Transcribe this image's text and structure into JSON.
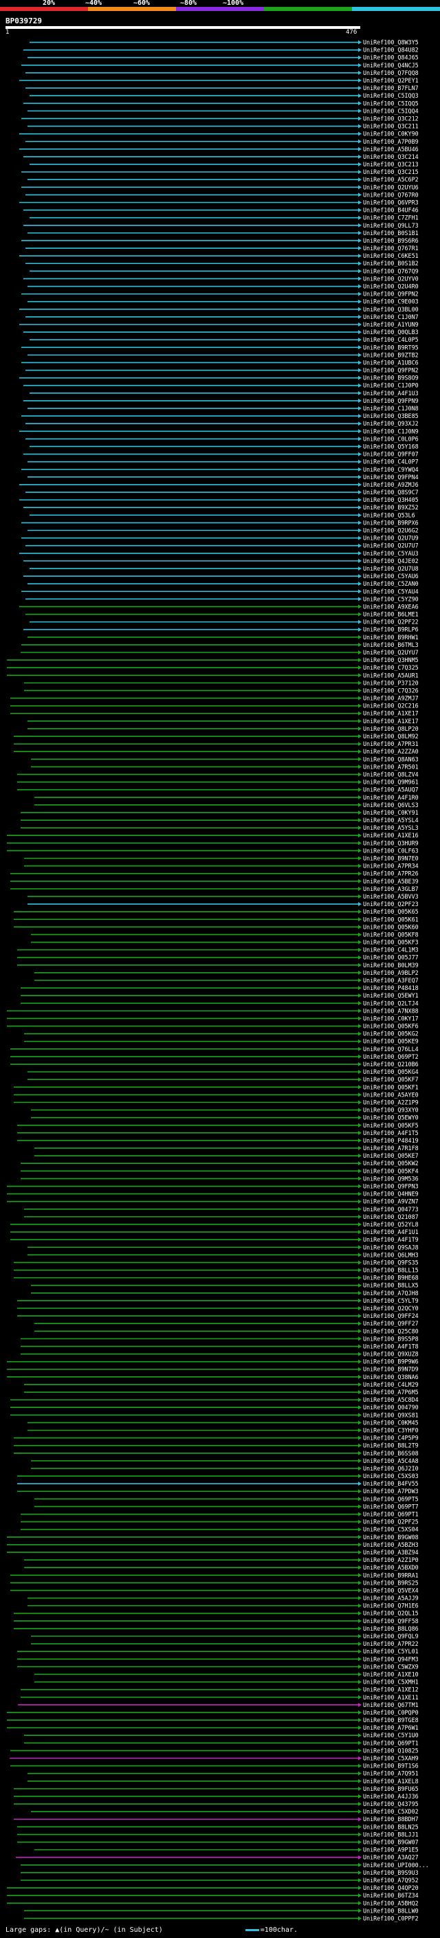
{
  "legend": {
    "ticks": [
      "20%",
      "~40%",
      "~60%",
      "~80%",
      "~100%"
    ],
    "colors": [
      "#e3262c",
      "#f28a1c",
      "#8a2be2",
      "#1aa51a",
      "#2ec4e0"
    ]
  },
  "title": "BP039729",
  "scale": {
    "start": "1",
    "end": "476"
  },
  "colors": {
    "cyan": "#2ec4e0",
    "green": "#1aa51a",
    "magenta": "#c026c0",
    "white": "#ffffff"
  },
  "hits": [
    {
      "id": "UniRef100_Q8W3Y5",
      "c": "cyan"
    },
    {
      "id": "UniRef100_Q84U82",
      "c": "cyan"
    },
    {
      "id": "UniRef100_Q84J65",
      "c": "cyan"
    },
    {
      "id": "UniRef100_Q4NCJ5",
      "c": "cyan"
    },
    {
      "id": "UniRef100_Q7FQQ8",
      "c": "cyan"
    },
    {
      "id": "UniRef100_Q2PEY1",
      "c": "cyan"
    },
    {
      "id": "UniRef100_B7FLN7",
      "c": "cyan"
    },
    {
      "id": "UniRef100_C5IQQ3",
      "c": "cyan"
    },
    {
      "id": "UniRef100_C5IQQ5",
      "c": "cyan"
    },
    {
      "id": "UniRef100_C5IQQ4",
      "c": "cyan"
    },
    {
      "id": "UniRef100_Q3C212",
      "c": "cyan"
    },
    {
      "id": "UniRef100_Q3C211",
      "c": "cyan"
    },
    {
      "id": "UniRef100_C0KY90",
      "c": "cyan"
    },
    {
      "id": "UniRef100_A7P0B9",
      "c": "cyan"
    },
    {
      "id": "UniRef100_A5BU46",
      "c": "cyan"
    },
    {
      "id": "UniRef100_Q3C214",
      "c": "cyan"
    },
    {
      "id": "UniRef100_Q3C213",
      "c": "cyan"
    },
    {
      "id": "UniRef100_Q3C215",
      "c": "cyan"
    },
    {
      "id": "UniRef100_A5C6P2",
      "c": "cyan"
    },
    {
      "id": "UniRef100_Q2UYU6",
      "c": "cyan"
    },
    {
      "id": "UniRef100_Q767R0",
      "c": "cyan"
    },
    {
      "id": "UniRef100_Q6VPR3",
      "c": "cyan"
    },
    {
      "id": "UniRef100_B4UF46",
      "c": "cyan"
    },
    {
      "id": "UniRef100_C7ZFH1",
      "c": "cyan"
    },
    {
      "id": "UniRef100_Q9LL73",
      "c": "cyan"
    },
    {
      "id": "UniRef100_B0S1B1",
      "c": "cyan"
    },
    {
      "id": "UniRef100_B9S6R6",
      "c": "cyan"
    },
    {
      "id": "UniRef100_Q767R1",
      "c": "cyan"
    },
    {
      "id": "UniRef100_C6KE51",
      "c": "cyan"
    },
    {
      "id": "UniRef100_B0S1B2",
      "c": "cyan"
    },
    {
      "id": "UniRef100_Q767Q9",
      "c": "cyan"
    },
    {
      "id": "UniRef100_Q2UYV0",
      "c": "cyan"
    },
    {
      "id": "UniRef100_Q2U4R0",
      "c": "cyan"
    },
    {
      "id": "UniRef100_Q9FPN2",
      "c": "cyan"
    },
    {
      "id": "UniRef100_C9E003",
      "c": "cyan"
    },
    {
      "id": "UniRef100_Q3BL00",
      "c": "cyan"
    },
    {
      "id": "UniRef100_C1J0N7",
      "c": "cyan"
    },
    {
      "id": "UniRef100_A1YUN9",
      "c": "cyan"
    },
    {
      "id": "UniRef100_Q0QLB3",
      "c": "cyan"
    },
    {
      "id": "UniRef100_C4L0P5",
      "c": "cyan"
    },
    {
      "id": "UniRef100_B9RT95",
      "c": "cyan"
    },
    {
      "id": "UniRef100_B9ZTB2",
      "c": "cyan"
    },
    {
      "id": "UniRef100_A1UBC6",
      "c": "cyan"
    },
    {
      "id": "UniRef100_Q9FPN2",
      "c": "cyan"
    },
    {
      "id": "UniRef100_B9S8O9",
      "c": "cyan"
    },
    {
      "id": "UniRef100_C1J0P0",
      "c": "cyan"
    },
    {
      "id": "UniRef100_A4F1U3",
      "c": "cyan"
    },
    {
      "id": "UniRef100_Q9FPN9",
      "c": "cyan"
    },
    {
      "id": "UniRef100_C1J0N8",
      "c": "cyan"
    },
    {
      "id": "UniRef100_Q3BE85",
      "c": "cyan"
    },
    {
      "id": "UniRef100_Q93XJ2",
      "c": "cyan"
    },
    {
      "id": "UniRef100_C1J0N9",
      "c": "cyan"
    },
    {
      "id": "UniRef100_C0L0P6",
      "c": "cyan"
    },
    {
      "id": "UniRef100_Q5Y168",
      "c": "cyan"
    },
    {
      "id": "UniRef100_Q9FF07",
      "c": "cyan"
    },
    {
      "id": "UniRef100_C4L0P7",
      "c": "cyan"
    },
    {
      "id": "UniRef100_C9YWQ4",
      "c": "cyan"
    },
    {
      "id": "UniRef100_Q9FPN4",
      "c": "cyan"
    },
    {
      "id": "UniRef100_A9ZMJ6",
      "c": "cyan"
    },
    {
      "id": "UniRef100_Q8S9C7",
      "c": "cyan"
    },
    {
      "id": "UniRef100_Q3H405",
      "c": "cyan"
    },
    {
      "id": "UniRef100_B9XZ52",
      "c": "cyan"
    },
    {
      "id": "UniRef100_Q53L6",
      "c": "cyan"
    },
    {
      "id": "UniRef100_B9RPX6",
      "c": "cyan"
    },
    {
      "id": "UniRef100_Q2U6G2",
      "c": "cyan"
    },
    {
      "id": "UniRef100_Q2U7U9",
      "c": "cyan"
    },
    {
      "id": "UniRef100_Q2U7U7",
      "c": "cyan"
    },
    {
      "id": "UniRef100_C5YAU3",
      "c": "cyan"
    },
    {
      "id": "UniRef100_Q4JE02",
      "c": "cyan"
    },
    {
      "id": "UniRef100_Q2U7U8",
      "c": "cyan"
    },
    {
      "id": "UniRef100_C5YAU6",
      "c": "cyan"
    },
    {
      "id": "UniRef100_C5ZAN0",
      "c": "cyan"
    },
    {
      "id": "UniRef100_C5YAU4",
      "c": "cyan"
    },
    {
      "id": "UniRef100_C5YZ90",
      "c": "cyan"
    },
    {
      "id": "UniRef100_A9XEA6",
      "c": "green"
    },
    {
      "id": "UniRef100_B6LME1",
      "c": "green"
    },
    {
      "id": "UniRef100_Q2PF22",
      "c": "cyan"
    },
    {
      "id": "UniRef100_B9RLP6",
      "c": "cyan"
    },
    {
      "id": "UniRef100_B9RHW1",
      "c": "green"
    },
    {
      "id": "UniRef100_B6TML3",
      "c": "green"
    },
    {
      "id": "UniRef100_Q2UYU7",
      "c": "green"
    },
    {
      "id": "UniRef100_Q3HNM5",
      "c": "green"
    },
    {
      "id": "UniRef100_C7Q325",
      "c": "green"
    },
    {
      "id": "UniRef100_A5AUR1",
      "c": "green"
    },
    {
      "id": "UniRef100_P37120",
      "c": "green"
    },
    {
      "id": "UniRef100_C7Q326",
      "c": "green"
    },
    {
      "id": "UniRef100_A9ZMJ7",
      "c": "green"
    },
    {
      "id": "UniRef100_Q2C216",
      "c": "green"
    },
    {
      "id": "UniRef100_A1XE17",
      "c": "green"
    },
    {
      "id": "UniRef100_A1XE17",
      "c": "green"
    },
    {
      "id": "UniRef100_Q8LP20",
      "c": "green"
    },
    {
      "id": "UniRef100_Q8LM92",
      "c": "green"
    },
    {
      "id": "UniRef100_A7PR31",
      "c": "green"
    },
    {
      "id": "UniRef100_A2ZZA0",
      "c": "green"
    },
    {
      "id": "UniRef100_Q8AN63",
      "c": "green"
    },
    {
      "id": "UniRef100_A7R501",
      "c": "green"
    },
    {
      "id": "UniRef100_Q8LZV4",
      "c": "green"
    },
    {
      "id": "UniRef100_Q9M961",
      "c": "green"
    },
    {
      "id": "UniRef100_A5AUQ7",
      "c": "green"
    },
    {
      "id": "UniRef100_A4F1R0",
      "c": "green"
    },
    {
      "id": "UniRef100_Q6VLS3",
      "c": "green"
    },
    {
      "id": "UniRef100_C0KY91",
      "c": "green"
    },
    {
      "id": "UniRef100_A5YSL4",
      "c": "green"
    },
    {
      "id": "UniRef100_A5YSL3",
      "c": "green"
    },
    {
      "id": "UniRef100_A1XE16",
      "c": "green"
    },
    {
      "id": "UniRef100_Q3HUR9",
      "c": "green"
    },
    {
      "id": "UniRef100_C0LF63",
      "c": "green"
    },
    {
      "id": "UniRef100_B9N7E0",
      "c": "green"
    },
    {
      "id": "UniRef100_A7PR34",
      "c": "green"
    },
    {
      "id": "UniRef100_A7PR26",
      "c": "green"
    },
    {
      "id": "UniRef100_A5BE39",
      "c": "green"
    },
    {
      "id": "UniRef100_A3GLB7",
      "c": "green"
    },
    {
      "id": "UniRef100_A5BVV3",
      "c": "green"
    },
    {
      "id": "UniRef100_Q2PF23",
      "c": "cyan"
    },
    {
      "id": "UniRef100_Q05K65",
      "c": "green"
    },
    {
      "id": "UniRef100_Q05K61",
      "c": "green"
    },
    {
      "id": "UniRef100_Q05K60",
      "c": "green"
    },
    {
      "id": "UniRef100_Q05KF8",
      "c": "green"
    },
    {
      "id": "UniRef100_Q05KF3",
      "c": "green"
    },
    {
      "id": "UniRef100_C4L1M3",
      "c": "green"
    },
    {
      "id": "UniRef100_Q05J77",
      "c": "green"
    },
    {
      "id": "UniRef100_B0LM39",
      "c": "green"
    },
    {
      "id": "UniRef100_A9BLP2",
      "c": "green"
    },
    {
      "id": "UniRef100_A3FEQ7",
      "c": "green"
    },
    {
      "id": "UniRef100_P48418",
      "c": "green"
    },
    {
      "id": "UniRef100_Q5EWY1",
      "c": "green"
    },
    {
      "id": "UniRef100_Q2LTJ4",
      "c": "green"
    },
    {
      "id": "UniRef100_A7NX88",
      "c": "green"
    },
    {
      "id": "UniRef100_C0KY17",
      "c": "green"
    },
    {
      "id": "UniRef100_Q05KF6",
      "c": "green"
    },
    {
      "id": "UniRef100_Q05KG2",
      "c": "green"
    },
    {
      "id": "UniRef100_Q05KE9",
      "c": "green"
    },
    {
      "id": "UniRef100_Q76LL4",
      "c": "green"
    },
    {
      "id": "UniRef100_Q69PT2",
      "c": "green"
    },
    {
      "id": "UniRef100_Q210B6",
      "c": "green"
    },
    {
      "id": "UniRef100_Q05KG4",
      "c": "green"
    },
    {
      "id": "UniRef100_Q05KF7",
      "c": "green"
    },
    {
      "id": "UniRef100_Q05KF1",
      "c": "green"
    },
    {
      "id": "UniRef100_A5AYE0",
      "c": "green"
    },
    {
      "id": "UniRef100_A2Z1P9",
      "c": "green"
    },
    {
      "id": "UniRef100_Q93XY0",
      "c": "green"
    },
    {
      "id": "UniRef100_Q5EWY0",
      "c": "green"
    },
    {
      "id": "UniRef100_Q05KF5",
      "c": "green"
    },
    {
      "id": "UniRef100_A4F1T5",
      "c": "green"
    },
    {
      "id": "UniRef100_P48419",
      "c": "green"
    },
    {
      "id": "UniRef100_A7R1F8",
      "c": "green"
    },
    {
      "id": "UniRef100_Q05KE7",
      "c": "green"
    },
    {
      "id": "UniRef100_Q05KW2",
      "c": "green"
    },
    {
      "id": "UniRef100_Q05KF4",
      "c": "green"
    },
    {
      "id": "UniRef100_Q9M536",
      "c": "green"
    },
    {
      "id": "UniRef100_Q9FPN3",
      "c": "green"
    },
    {
      "id": "UniRef100_Q4HNE9",
      "c": "green"
    },
    {
      "id": "UniRef100_A9VZN7",
      "c": "green"
    },
    {
      "id": "UniRef100_Q04773",
      "c": "green"
    },
    {
      "id": "UniRef100_Q21087",
      "c": "green"
    },
    {
      "id": "UniRef100_Q52YL8",
      "c": "green"
    },
    {
      "id": "UniRef100_A4F1U1",
      "c": "green"
    },
    {
      "id": "UniRef100_A4F1T9",
      "c": "green"
    },
    {
      "id": "UniRef100_Q9SAJ8",
      "c": "green"
    },
    {
      "id": "UniRef100_Q6LMH3",
      "c": "green"
    },
    {
      "id": "UniRef100_Q9FS35",
      "c": "green"
    },
    {
      "id": "UniRef100_B8LL15",
      "c": "green"
    },
    {
      "id": "UniRef100_B9HE68",
      "c": "green"
    },
    {
      "id": "UniRef100_B8LLX5",
      "c": "green"
    },
    {
      "id": "UniRef100_A7QJH8",
      "c": "green"
    },
    {
      "id": "UniRef100_C5YLT9",
      "c": "green"
    },
    {
      "id": "UniRef100_Q2QCY0",
      "c": "green"
    },
    {
      "id": "UniRef100_Q9FF24",
      "c": "green"
    },
    {
      "id": "UniRef100_Q9FF27",
      "c": "green"
    },
    {
      "id": "UniRef100_Q25C80",
      "c": "green"
    },
    {
      "id": "UniRef100_B9S5P8",
      "c": "green"
    },
    {
      "id": "UniRef100_A4F1T8",
      "c": "green"
    },
    {
      "id": "UniRef100_Q9XUZ8",
      "c": "green"
    },
    {
      "id": "UniRef100_B9P9W6",
      "c": "green"
    },
    {
      "id": "UniRef100_B9N7D9",
      "c": "green"
    },
    {
      "id": "UniRef100_Q38NA6",
      "c": "green"
    },
    {
      "id": "UniRef100_C4LM29",
      "c": "green"
    },
    {
      "id": "UniRef100_A7P6M5",
      "c": "green"
    },
    {
      "id": "UniRef100_A5C8D4",
      "c": "green"
    },
    {
      "id": "UniRef100_Q04790",
      "c": "green"
    },
    {
      "id": "UniRef100_Q9XS81",
      "c": "green"
    },
    {
      "id": "UniRef100_C0KM45",
      "c": "green"
    },
    {
      "id": "UniRef100_C3YHF0",
      "c": "green"
    },
    {
      "id": "UniRef100_C4P5P9",
      "c": "green"
    },
    {
      "id": "UniRef100_B8L2T9",
      "c": "green"
    },
    {
      "id": "UniRef100_B6SS08",
      "c": "green"
    },
    {
      "id": "UniRef100_A5C4A8",
      "c": "green"
    },
    {
      "id": "UniRef100_Q6J2I0",
      "c": "green"
    },
    {
      "id": "UniRef100_C5XS03",
      "c": "green"
    },
    {
      "id": "UniRef100_B4FV55",
      "c": "cyan"
    },
    {
      "id": "UniRef100_A7PDW3",
      "c": "green"
    },
    {
      "id": "UniRef100_Q69PT5",
      "c": "green"
    },
    {
      "id": "UniRef100_Q69PT7",
      "c": "green"
    },
    {
      "id": "UniRef100_Q69PT1",
      "c": "green"
    },
    {
      "id": "UniRef100_Q2PF25",
      "c": "green"
    },
    {
      "id": "UniRef100_C5XS04",
      "c": "green"
    },
    {
      "id": "UniRef100_B9GW08",
      "c": "green"
    },
    {
      "id": "UniRef100_A5BZH3",
      "c": "green"
    },
    {
      "id": "UniRef100_A3BZ94",
      "c": "green"
    },
    {
      "id": "UniRef100_A2Z1P0",
      "c": "green"
    },
    {
      "id": "UniRef100_A5BXD0",
      "c": "green"
    },
    {
      "id": "UniRef100_B9RRA1",
      "c": "green"
    },
    {
      "id": "UniRef100_B9RS25",
      "c": "green"
    },
    {
      "id": "UniRef100_Q5VEX4",
      "c": "green"
    },
    {
      "id": "UniRef100_A5AJJ9",
      "c": "green"
    },
    {
      "id": "UniRef100_Q7H1E6",
      "c": "green"
    },
    {
      "id": "UniRef100_Q2QL15",
      "c": "green"
    },
    {
      "id": "UniRef100_Q9FF58",
      "c": "green"
    },
    {
      "id": "UniRef100_B8LQ86",
      "c": "green"
    },
    {
      "id": "UniRef100_Q9FQL9",
      "c": "green"
    },
    {
      "id": "UniRef100_A7PR22",
      "c": "green"
    },
    {
      "id": "UniRef100_C5YL01",
      "c": "green"
    },
    {
      "id": "UniRef100_Q94FM3",
      "c": "green"
    },
    {
      "id": "UniRef100_C5WZX9",
      "c": "green"
    },
    {
      "id": "UniRef100_A1XE10",
      "c": "green"
    },
    {
      "id": "UniRef100_C5XMH1",
      "c": "green"
    },
    {
      "id": "UniRef100_A1XE12",
      "c": "green"
    },
    {
      "id": "UniRef100_A1XE11",
      "c": "green"
    },
    {
      "id": "UniRef100_Q67TM1",
      "c": "magenta"
    },
    {
      "id": "UniRef100_C0PQP0",
      "c": "green"
    },
    {
      "id": "UniRef100_B9TGE8",
      "c": "green"
    },
    {
      "id": "UniRef100_A7P6W1",
      "c": "green"
    },
    {
      "id": "UniRef100_C5Y1U0",
      "c": "green"
    },
    {
      "id": "UniRef100_Q69PT1",
      "c": "green"
    },
    {
      "id": "UniRef100_Q10825",
      "c": "green"
    },
    {
      "id": "UniRef100_C5XAH9",
      "c": "magenta"
    },
    {
      "id": "UniRef100_B9T1S6",
      "c": "green"
    },
    {
      "id": "UniRef100_A7Q951",
      "c": "green"
    },
    {
      "id": "UniRef100_A1XEL8",
      "c": "green"
    },
    {
      "id": "UniRef100_B9FU65",
      "c": "green"
    },
    {
      "id": "UniRef100_A4JJ36",
      "c": "green"
    },
    {
      "id": "UniRef100_Q43795",
      "c": "green"
    },
    {
      "id": "UniRef100_C5XD02",
      "c": "green"
    },
    {
      "id": "UniRef100_B8BDH7",
      "c": "magenta"
    },
    {
      "id": "UniRef100_B8LN25",
      "c": "green"
    },
    {
      "id": "UniRef100_B8LJJ1",
      "c": "green"
    },
    {
      "id": "UniRef100_B9GW07",
      "c": "green"
    },
    {
      "id": "UniRef100_A9P1E5",
      "c": "green"
    },
    {
      "id": "UniRef100_A3AQ27",
      "c": "magenta"
    },
    {
      "id": "UniRef100_UPI000...",
      "c": "green"
    },
    {
      "id": "UniRef100_B9S9U3",
      "c": "green"
    },
    {
      "id": "UniRef100_A7Q952",
      "c": "green"
    },
    {
      "id": "UniRef100_Q4QP20",
      "c": "green"
    },
    {
      "id": "UniRef100_B6TZ34",
      "c": "green"
    },
    {
      "id": "UniRef100_A5BHQ2",
      "c": "green"
    },
    {
      "id": "UniRef100_B8LLW0",
      "c": "green"
    },
    {
      "id": "UniRef100_C0PPF2",
      "c": "green"
    }
  ],
  "footer": {
    "text": "Large gaps: ▲(in Query)/~ (in Subject)",
    "scale_text": "=100char."
  }
}
